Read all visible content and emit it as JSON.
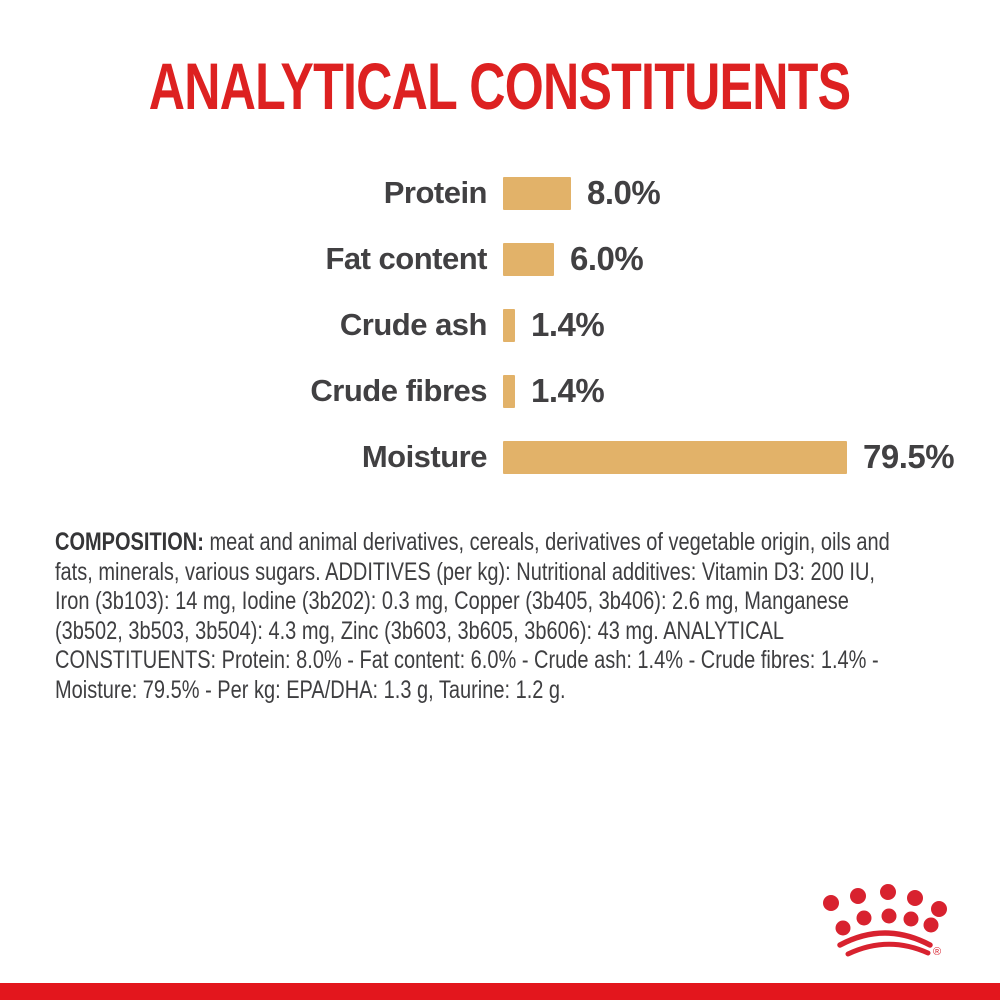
{
  "title": {
    "text": "ANALYTICAL CONSTITUENTS",
    "color": "#dd2121"
  },
  "chart_data": {
    "type": "bar",
    "orientation": "horizontal",
    "title": "ANALYTICAL CONSTITUENTS",
    "categories": [
      "Protein",
      "Fat content",
      "Crude ash",
      "Crude fibres",
      "Moisture"
    ],
    "values": [
      8.0,
      6.0,
      1.4,
      1.4,
      79.5
    ],
    "value_labels": [
      "8.0%",
      "6.0%",
      "1.4%",
      "1.4%",
      "79.5%"
    ],
    "unit": "%",
    "bar_color": "#e2b269",
    "label_color": "#414042",
    "legend": "none",
    "grid": false
  },
  "composition": {
    "lead": "COMPOSITION:",
    "lines": [
      " meat and animal derivatives, cereals, derivatives of vegetable origin, oils and",
      "fats, minerals, various sugars. ADDITIVES (per kg): Nutritional additives: Vitamin D3: 200 IU,",
      "Iron (3b103): 14 mg, Iodine (3b202): 0.3 mg, Copper (3b405, 3b406): 2.6 mg, Manganese",
      "(3b502, 3b503, 3b504): 4.3 mg, Zinc (3b603, 3b605, 3b606): 43 mg. ANALYTICAL",
      "CONSTITUENTS: Protein: 8.0% - Fat content: 6.0% - Crude ash: 1.4% - Crude fibres: 1.4% -",
      "Moisture: 79.5% - Per kg: EPA/DHA: 1.3 g, Taurine: 1.2 g."
    ]
  },
  "footer": {
    "brand": "royal-canin-crown",
    "registered_mark": "®",
    "crown_color": "#d8222f",
    "band_color": "#e3161d"
  }
}
